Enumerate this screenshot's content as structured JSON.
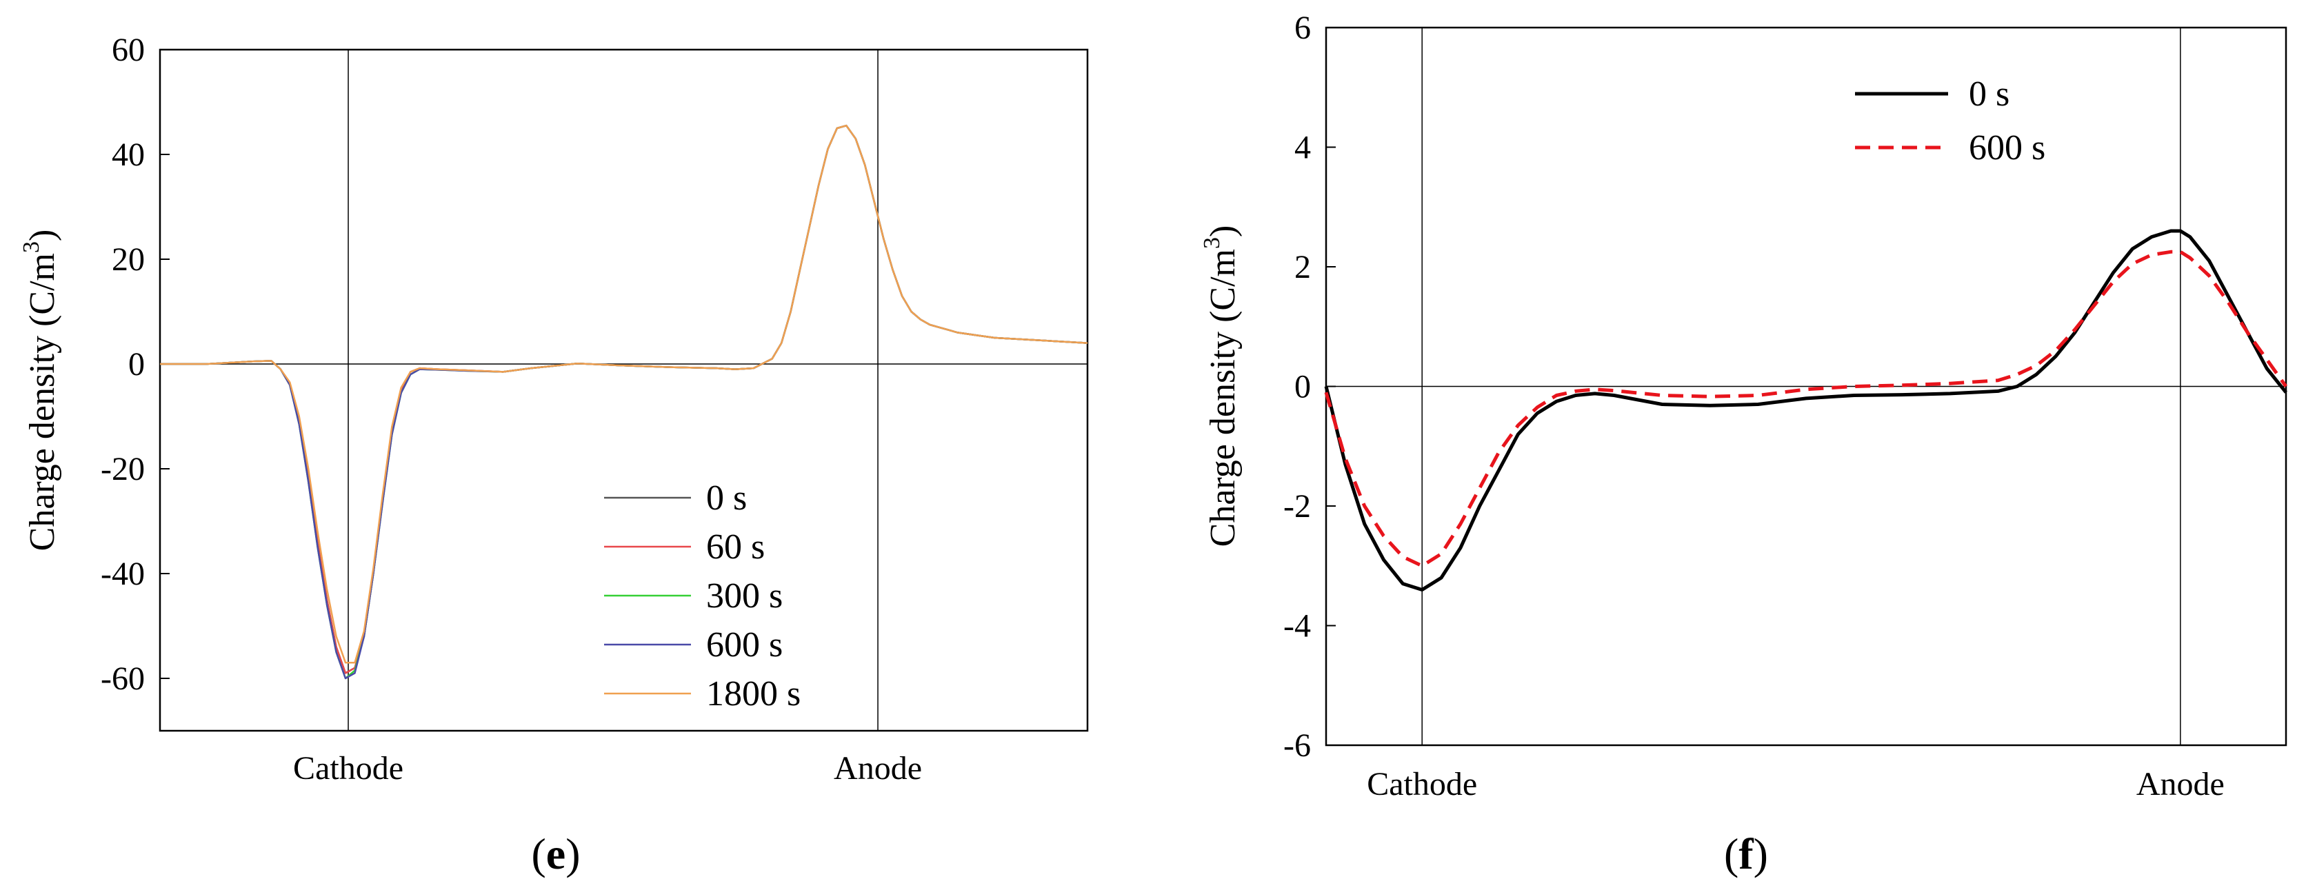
{
  "chart_data": [
    {
      "panel": "e",
      "type": "line",
      "ylabel": "Charge density (C/m",
      "ylabel_sup": "3",
      "ylabel_close": ")",
      "xlabel": "",
      "ylim": [
        -70,
        60
      ],
      "yticks": [
        60,
        40,
        20,
        0,
        -20,
        -40,
        -60
      ],
      "ytick_labels": [
        "60",
        "40",
        "20",
        "0",
        "-20",
        "-40",
        "-60"
      ],
      "xlim": [
        0,
        1
      ],
      "xtick_positions": [
        0.203,
        0.774
      ],
      "xtick_labels": [
        "Cathode",
        "Anode"
      ],
      "grid": "vertical lines at cathode and anode, horizontal line at 0",
      "legend_position": "bottom-center",
      "series": [
        {
          "name": "0 s",
          "color": "#555555",
          "x": [
            0,
            0.05,
            0.1,
            0.12,
            0.13,
            0.14,
            0.15,
            0.16,
            0.17,
            0.18,
            0.19,
            0.2,
            0.21,
            0.22,
            0.23,
            0.24,
            0.25,
            0.26,
            0.27,
            0.28,
            0.3,
            0.33,
            0.37,
            0.4,
            0.45,
            0.5,
            0.55,
            0.6,
            0.62,
            0.64,
            0.66,
            0.67,
            0.68,
            0.69,
            0.7,
            0.71,
            0.72,
            0.73,
            0.74,
            0.75,
            0.76,
            0.77,
            0.78,
            0.79,
            0.8,
            0.81,
            0.82,
            0.83,
            0.84,
            0.85,
            0.86,
            0.88,
            0.9,
            0.95,
            1
          ],
          "y": [
            0,
            0,
            0.5,
            0.6,
            -1,
            -4,
            -11,
            -22,
            -34,
            -45,
            -54,
            -59,
            -58,
            -52,
            -40,
            -26,
            -13,
            -5,
            -1.5,
            -0.8,
            -1,
            -1.2,
            -1.5,
            -0.8,
            0.1,
            -0.3,
            -0.6,
            -0.8,
            -1,
            -0.8,
            1,
            4,
            10,
            18,
            26,
            34,
            41,
            45,
            45.5,
            43,
            38,
            31,
            24,
            18,
            13,
            10,
            8.5,
            7.5,
            7,
            6.5,
            6,
            5.5,
            5,
            4.5,
            4
          ]
        },
        {
          "name": "60 s",
          "color": "#e8474b",
          "x": [
            0,
            0.05,
            0.1,
            0.12,
            0.13,
            0.14,
            0.15,
            0.16,
            0.17,
            0.18,
            0.19,
            0.2,
            0.21,
            0.22,
            0.23,
            0.24,
            0.25,
            0.26,
            0.27,
            0.28,
            0.3,
            0.33,
            0.37,
            0.4,
            0.45,
            0.5,
            0.55,
            0.6,
            0.62,
            0.64,
            0.66,
            0.67,
            0.68,
            0.69,
            0.7,
            0.71,
            0.72,
            0.73,
            0.74,
            0.75,
            0.76,
            0.77,
            0.78,
            0.79,
            0.8,
            0.81,
            0.82,
            0.83,
            0.84,
            0.85,
            0.86,
            0.88,
            0.9,
            0.95,
            1
          ],
          "y": [
            0,
            0,
            0.5,
            0.6,
            -1,
            -4,
            -11,
            -22,
            -34,
            -45,
            -54,
            -59,
            -58,
            -52,
            -40,
            -26,
            -13,
            -5,
            -1.5,
            -0.8,
            -1,
            -1.2,
            -1.5,
            -0.8,
            0.1,
            -0.3,
            -0.6,
            -0.8,
            -1,
            -0.8,
            1,
            4,
            10,
            18,
            26,
            34,
            41,
            45,
            45.5,
            43,
            38,
            31,
            24,
            18,
            13,
            10,
            8.5,
            7.5,
            7,
            6.5,
            6,
            5.5,
            5,
            4.5,
            4
          ]
        },
        {
          "name": "300 s",
          "color": "#35d035",
          "x": [
            0,
            0.05,
            0.1,
            0.12,
            0.13,
            0.14,
            0.15,
            0.16,
            0.17,
            0.18,
            0.19,
            0.2,
            0.21,
            0.22,
            0.23,
            0.24,
            0.25,
            0.26,
            0.27,
            0.28,
            0.3,
            0.33,
            0.37,
            0.4,
            0.45,
            0.5,
            0.55,
            0.6,
            0.62,
            0.64,
            0.66,
            0.67,
            0.68,
            0.69,
            0.7,
            0.71,
            0.72,
            0.73,
            0.74,
            0.75,
            0.76,
            0.77,
            0.78,
            0.79,
            0.8,
            0.81,
            0.82,
            0.83,
            0.84,
            0.85,
            0.86,
            0.88,
            0.9,
            0.95,
            1
          ],
          "y": [
            0,
            0,
            0.5,
            0.6,
            -1,
            -4,
            -11.5,
            -22.5,
            -35,
            -46,
            -55,
            -60,
            -58.5,
            -52,
            -40,
            -26.5,
            -13.5,
            -5.5,
            -2,
            -1,
            -1.1,
            -1.3,
            -1.5,
            -0.8,
            0.1,
            -0.3,
            -0.6,
            -0.8,
            -1,
            -0.8,
            1,
            4,
            10,
            18,
            26,
            34,
            41,
            45,
            45.5,
            43,
            38,
            31,
            24,
            18,
            13,
            10,
            8.5,
            7.5,
            7,
            6.5,
            6,
            5.5,
            5,
            4.5,
            4
          ]
        },
        {
          "name": "600 s",
          "color": "#4a4aa8",
          "x": [
            0,
            0.05,
            0.1,
            0.12,
            0.13,
            0.14,
            0.15,
            0.16,
            0.17,
            0.18,
            0.19,
            0.2,
            0.21,
            0.22,
            0.23,
            0.24,
            0.25,
            0.26,
            0.27,
            0.28,
            0.3,
            0.33,
            0.37,
            0.4,
            0.45,
            0.5,
            0.55,
            0.6,
            0.62,
            0.64,
            0.66,
            0.67,
            0.68,
            0.69,
            0.7,
            0.71,
            0.72,
            0.73,
            0.74,
            0.75,
            0.76,
            0.77,
            0.78,
            0.79,
            0.8,
            0.81,
            0.82,
            0.83,
            0.84,
            0.85,
            0.86,
            0.88,
            0.9,
            0.95,
            1
          ],
          "y": [
            0,
            0,
            0.5,
            0.6,
            -1,
            -4,
            -11.5,
            -22.5,
            -35,
            -46,
            -55,
            -60,
            -59,
            -52,
            -40,
            -26.5,
            -13.5,
            -5.5,
            -2,
            -1,
            -1.1,
            -1.3,
            -1.5,
            -0.8,
            0.1,
            -0.3,
            -0.6,
            -0.8,
            -1,
            -0.8,
            1,
            4,
            10,
            18,
            26,
            34,
            41,
            45,
            45.5,
            43,
            38,
            31,
            24,
            18,
            13,
            10,
            8.5,
            7.5,
            7,
            6.5,
            6,
            5.5,
            5,
            4.5,
            4
          ]
        },
        {
          "name": "1800 s",
          "color": "#f0a050",
          "x": [
            0,
            0.05,
            0.1,
            0.12,
            0.13,
            0.14,
            0.15,
            0.16,
            0.17,
            0.18,
            0.19,
            0.2,
            0.21,
            0.22,
            0.23,
            0.24,
            0.25,
            0.26,
            0.27,
            0.28,
            0.3,
            0.33,
            0.37,
            0.4,
            0.45,
            0.5,
            0.55,
            0.6,
            0.62,
            0.64,
            0.66,
            0.67,
            0.68,
            0.69,
            0.7,
            0.71,
            0.72,
            0.73,
            0.74,
            0.75,
            0.76,
            0.77,
            0.78,
            0.79,
            0.8,
            0.81,
            0.82,
            0.83,
            0.84,
            0.85,
            0.86,
            0.88,
            0.9,
            0.95,
            1
          ],
          "y": [
            0,
            0,
            0.5,
            0.6,
            -1,
            -3.5,
            -10,
            -20,
            -32,
            -43,
            -52,
            -57,
            -57,
            -51,
            -39,
            -25,
            -12,
            -4.5,
            -1.5,
            -0.8,
            -1,
            -1.2,
            -1.5,
            -0.8,
            0.1,
            -0.3,
            -0.6,
            -0.8,
            -1,
            -0.8,
            1,
            4,
            10,
            18,
            26,
            34,
            41,
            45,
            45.5,
            43,
            38,
            31,
            24,
            18,
            13,
            10,
            8.5,
            7.5,
            7,
            6.5,
            6,
            5.5,
            5,
            4.5,
            4
          ]
        }
      ],
      "caption_open": "(",
      "caption_letter": "e",
      "caption_close": ")"
    },
    {
      "panel": "f",
      "type": "line",
      "ylabel": "Charge density (C/m",
      "ylabel_sup": "3",
      "ylabel_close": ")",
      "xlabel": "",
      "ylim": [
        -6,
        6
      ],
      "yticks": [
        6,
        4,
        2,
        0,
        -2,
        -4,
        -6
      ],
      "ytick_labels": [
        "6",
        "4",
        "2",
        "0",
        "-2",
        "-4",
        "-6"
      ],
      "xlim": [
        0,
        1
      ],
      "xtick_positions": [
        0.1,
        0.89
      ],
      "xtick_labels": [
        "Cathode",
        "Anode"
      ],
      "grid": "vertical lines at cathode and anode, horizontal line at 0",
      "legend_position": "top-right",
      "series": [
        {
          "name": "0 s",
          "color": "#000000",
          "dash": "solid",
          "x": [
            0,
            0.02,
            0.04,
            0.06,
            0.08,
            0.1,
            0.12,
            0.14,
            0.16,
            0.18,
            0.2,
            0.22,
            0.24,
            0.26,
            0.28,
            0.3,
            0.35,
            0.4,
            0.45,
            0.5,
            0.55,
            0.6,
            0.65,
            0.7,
            0.72,
            0.74,
            0.76,
            0.78,
            0.8,
            0.82,
            0.84,
            0.86,
            0.88,
            0.89,
            0.9,
            0.92,
            0.94,
            0.96,
            0.98,
            1
          ],
          "y": [
            0,
            -1.3,
            -2.3,
            -2.9,
            -3.3,
            -3.4,
            -3.2,
            -2.7,
            -2.0,
            -1.4,
            -0.8,
            -0.45,
            -0.25,
            -0.15,
            -0.12,
            -0.15,
            -0.3,
            -0.32,
            -0.3,
            -0.2,
            -0.15,
            -0.14,
            -0.12,
            -0.08,
            0,
            0.2,
            0.5,
            0.9,
            1.4,
            1.9,
            2.3,
            2.5,
            2.6,
            2.6,
            2.5,
            2.1,
            1.5,
            0.9,
            0.3,
            -0.1
          ]
        },
        {
          "name": "600 s",
          "color": "#e8141c",
          "dash": "dashed",
          "x": [
            0,
            0.02,
            0.04,
            0.06,
            0.08,
            0.1,
            0.12,
            0.14,
            0.16,
            0.18,
            0.2,
            0.22,
            0.24,
            0.26,
            0.28,
            0.3,
            0.35,
            0.4,
            0.45,
            0.5,
            0.55,
            0.6,
            0.65,
            0.7,
            0.72,
            0.74,
            0.76,
            0.78,
            0.8,
            0.82,
            0.84,
            0.86,
            0.88,
            0.89,
            0.9,
            0.92,
            0.94,
            0.96,
            0.98,
            1
          ],
          "y": [
            -0.1,
            -1.2,
            -2.0,
            -2.5,
            -2.85,
            -3.0,
            -2.8,
            -2.3,
            -1.7,
            -1.1,
            -0.65,
            -0.35,
            -0.15,
            -0.08,
            -0.05,
            -0.07,
            -0.15,
            -0.17,
            -0.15,
            -0.05,
            0,
            0.02,
            0.05,
            0.1,
            0.2,
            0.35,
            0.6,
            0.95,
            1.35,
            1.75,
            2.05,
            2.2,
            2.25,
            2.25,
            2.15,
            1.85,
            1.4,
            0.9,
            0.45,
            0.0
          ]
        }
      ],
      "caption_open": "(",
      "caption_letter": "f",
      "caption_close": ")"
    }
  ]
}
